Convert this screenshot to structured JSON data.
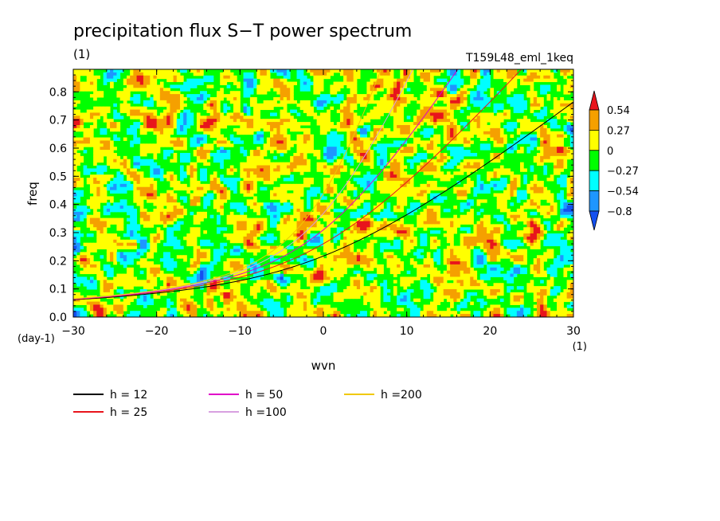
{
  "chart_data": {
    "type": "heatmap",
    "title": "precipitation flux S−T power spectrum",
    "unit_label": "(1)",
    "run_label": "T159L48_eml_1keq",
    "xlabel": "wvn",
    "ylabel": "freq",
    "x_unit": "(1)",
    "y_unit": "(day-1)",
    "xlim": [
      -30,
      30
    ],
    "ylim": [
      0,
      0.88
    ],
    "x_ticks": [
      -30,
      -20,
      -10,
      0,
      10,
      20,
      30
    ],
    "x_tick_labels": [
      "−30",
      "−20",
      "−10",
      "0",
      "10",
      "20",
      "30"
    ],
    "y_ticks": [
      0.0,
      0.1,
      0.2,
      0.3,
      0.4,
      0.5,
      0.6,
      0.7,
      0.8
    ],
    "y_tick_labels": [
      "0.0",
      "0.1",
      "0.2",
      "0.3",
      "0.4",
      "0.5",
      "0.6",
      "0.7",
      "0.8"
    ],
    "colorbar": {
      "levels": [
        0.54,
        0.27,
        0,
        -0.27,
        -0.54,
        -0.8
      ],
      "level_labels": [
        "0.54",
        "0.27",
        "0",
        "−0.27",
        "−0.54",
        "−0.8"
      ],
      "colors": [
        "#e8141c",
        "#f5a000",
        "#ffff00",
        "#00ff00",
        "#00ffff",
        "#1e96ff",
        "#1450f0"
      ]
    },
    "dispersion_curves": [
      {
        "name": "h = 12",
        "h": 12,
        "color": "#000000"
      },
      {
        "name": "h = 25",
        "h": 25,
        "color": "#e8141c"
      },
      {
        "name": "h = 50",
        "h": 50,
        "color": "#e000c8"
      },
      {
        "name": "h =100",
        "h": 100,
        "color": "#d8a0e0"
      },
      {
        "name": "h =200",
        "h": 200,
        "color": "#f0c800"
      }
    ]
  }
}
